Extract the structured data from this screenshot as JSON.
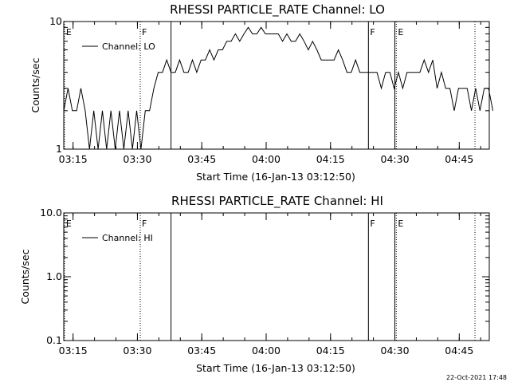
{
  "timestamp": "22-Oct-2021 17:48",
  "chart_data": [
    {
      "type": "line",
      "title": "RHESSI PARTICLE_RATE Channel: LO",
      "xlabel": "Start Time (16-Jan-13 03:12:50)",
      "ylabel": "Counts/sec",
      "y_scale": "log",
      "ylim": [
        1,
        10
      ],
      "y_ticks": [
        "1",
        "10"
      ],
      "x_ticks": [
        "03:15",
        "03:30",
        "03:45",
        "04:00",
        "04:15",
        "04:30",
        "04:45"
      ],
      "xlim": [
        "03:12:50",
        "04:52:00"
      ],
      "legend": {
        "label": "Channel: LO",
        "placement": "top-left"
      },
      "series": [
        {
          "name": "Channel: LO",
          "x_minutes_start": "03:12:50",
          "step_seconds": 60,
          "values": [
            2,
            3,
            2,
            2,
            3,
            2,
            1,
            2,
            1,
            2,
            1,
            2,
            1,
            2,
            1,
            2,
            1,
            2,
            1,
            2,
            2,
            3,
            4,
            4,
            5,
            4,
            4,
            5,
            4,
            4,
            5,
            4,
            5,
            5,
            6,
            5,
            6,
            6,
            7,
            7,
            8,
            7,
            8,
            9,
            8,
            8,
            9,
            8,
            8,
            8,
            8,
            7,
            8,
            7,
            7,
            8,
            7,
            6,
            7,
            6,
            5,
            5,
            5,
            5,
            6,
            5,
            4,
            4,
            5,
            4,
            4,
            4,
            4,
            4,
            3,
            4,
            4,
            3,
            4,
            3,
            4,
            4,
            4,
            4,
            5,
            4,
            5,
            3,
            4,
            3,
            3,
            2,
            3,
            3,
            3,
            2,
            3,
            2,
            3,
            3,
            2
          ]
        }
      ],
      "markers": [
        {
          "time": "03:13:00",
          "label": "E",
          "style": "dotted"
        },
        {
          "time": "03:30:40",
          "label": "F",
          "style": "dotted"
        },
        {
          "time": "03:37:50",
          "label": "",
          "style": "solid"
        },
        {
          "time": "04:23:50",
          "label": "F",
          "style": "solid"
        },
        {
          "time": "04:30:00",
          "label": "",
          "style": "solid"
        },
        {
          "time": "04:30:20",
          "label": "E",
          "style": "dotted"
        },
        {
          "time": "04:48:40",
          "label": "",
          "style": "dotted"
        }
      ]
    },
    {
      "type": "line",
      "title": "RHESSI PARTICLE_RATE Channel: HI",
      "xlabel": "Start Time (16-Jan-13 03:12:50)",
      "ylabel": "Counts/sec",
      "y_scale": "log",
      "ylim": [
        0.1,
        10
      ],
      "y_ticks": [
        "0.1",
        "1.0",
        "10.0"
      ],
      "x_ticks": [
        "03:15",
        "03:30",
        "03:45",
        "04:00",
        "04:15",
        "04:30",
        "04:45"
      ],
      "xlim": [
        "03:12:50",
        "04:52:00"
      ],
      "legend": {
        "label": "Channel: HI",
        "placement": "top-left"
      },
      "series": [
        {
          "name": "Channel: HI",
          "values": []
        }
      ],
      "markers": [
        {
          "time": "03:13:00",
          "label": "E",
          "style": "dotted"
        },
        {
          "time": "03:30:40",
          "label": "F",
          "style": "dotted"
        },
        {
          "time": "03:37:50",
          "label": "",
          "style": "solid"
        },
        {
          "time": "04:23:50",
          "label": "F",
          "style": "solid"
        },
        {
          "time": "04:30:00",
          "label": "",
          "style": "solid"
        },
        {
          "time": "04:30:20",
          "label": "E",
          "style": "dotted"
        },
        {
          "time": "04:48:40",
          "label": "",
          "style": "dotted"
        }
      ]
    }
  ]
}
